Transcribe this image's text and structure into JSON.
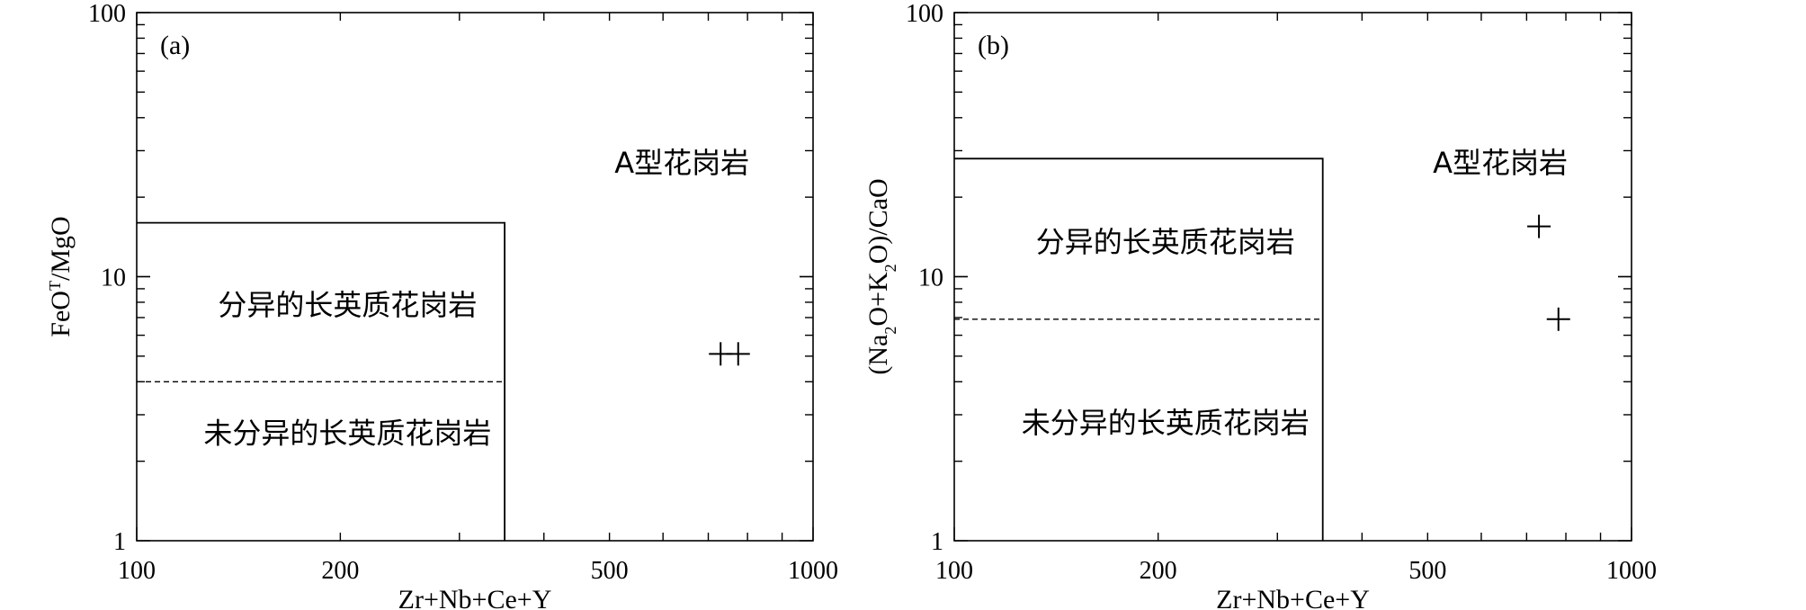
{
  "chart_data": [
    {
      "type": "scatter",
      "panel_label": "(a)",
      "xlabel": "Zr+Nb+Ce+Y",
      "ylabel": "FeO^T/MgO",
      "ylabel_parts": [
        {
          "text": "FeO",
          "style": "normal"
        },
        {
          "text": "T",
          "style": "sup"
        },
        {
          "text": "/MgO",
          "style": "normal"
        }
      ],
      "x_scale": "log",
      "y_scale": "log",
      "xlim": [
        100,
        1000
      ],
      "ylim": [
        1,
        100
      ],
      "x_ticks": [
        {
          "value": 100,
          "label": "100"
        },
        {
          "value": 200,
          "label": "200"
        },
        {
          "value": 500,
          "label": "500"
        },
        {
          "value": 1000,
          "label": "1000"
        }
      ],
      "y_ticks": [
        {
          "value": 1,
          "label": "1"
        },
        {
          "value": 10,
          "label": "10"
        },
        {
          "value": 100,
          "label": "100"
        }
      ],
      "boundaries": [
        {
          "kind": "solid",
          "points": [
            [
              100,
              16
            ],
            [
              350,
              16
            ],
            [
              350,
              1
            ]
          ]
        },
        {
          "kind": "dashed",
          "points": [
            [
              100,
              4
            ],
            [
              350,
              4
            ]
          ]
        }
      ],
      "region_labels": [
        {
          "text": "A型花岗岩",
          "x": 640,
          "y": 27
        },
        {
          "text": "分异的长英质花岗岩",
          "x": 205,
          "y": 7.8
        },
        {
          "text": "未分异的长英质花岗岩",
          "x": 205,
          "y": 2.55
        }
      ],
      "points": [
        {
          "x": 730,
          "y": 5.1
        },
        {
          "x": 775,
          "y": 5.1
        }
      ]
    },
    {
      "type": "scatter",
      "panel_label": "(b)",
      "xlabel": "Zr+Nb+Ce+Y",
      "ylabel": "(Na2O+K2O)/CaO",
      "ylabel_parts": [
        {
          "text": "(Na",
          "style": "normal"
        },
        {
          "text": "2",
          "style": "sub"
        },
        {
          "text": "O+K",
          "style": "normal"
        },
        {
          "text": "2",
          "style": "sub"
        },
        {
          "text": "O)/CaO",
          "style": "normal"
        }
      ],
      "x_scale": "log",
      "y_scale": "log",
      "xlim": [
        100,
        1000
      ],
      "ylim": [
        1,
        100
      ],
      "x_ticks": [
        {
          "value": 100,
          "label": "100"
        },
        {
          "value": 200,
          "label": "200"
        },
        {
          "value": 500,
          "label": "500"
        },
        {
          "value": 1000,
          "label": "1000"
        }
      ],
      "y_ticks": [
        {
          "value": 1,
          "label": "1"
        },
        {
          "value": 10,
          "label": "10"
        },
        {
          "value": 100,
          "label": "100"
        }
      ],
      "boundaries": [
        {
          "kind": "solid",
          "points": [
            [
              100,
              28
            ],
            [
              350,
              28
            ],
            [
              350,
              1
            ]
          ]
        },
        {
          "kind": "dashed",
          "points": [
            [
              100,
              6.9
            ],
            [
              350,
              6.9
            ]
          ]
        }
      ],
      "region_labels": [
        {
          "text": "A型花岗岩",
          "x": 640,
          "y": 27
        },
        {
          "text": "分异的长英质花岗岩",
          "x": 205,
          "y": 13.5
        },
        {
          "text": "未分异的长英质花岗岩",
          "x": 205,
          "y": 2.8
        }
      ],
      "points": [
        {
          "x": 730,
          "y": 15.5
        },
        {
          "x": 780,
          "y": 6.9
        }
      ]
    }
  ]
}
